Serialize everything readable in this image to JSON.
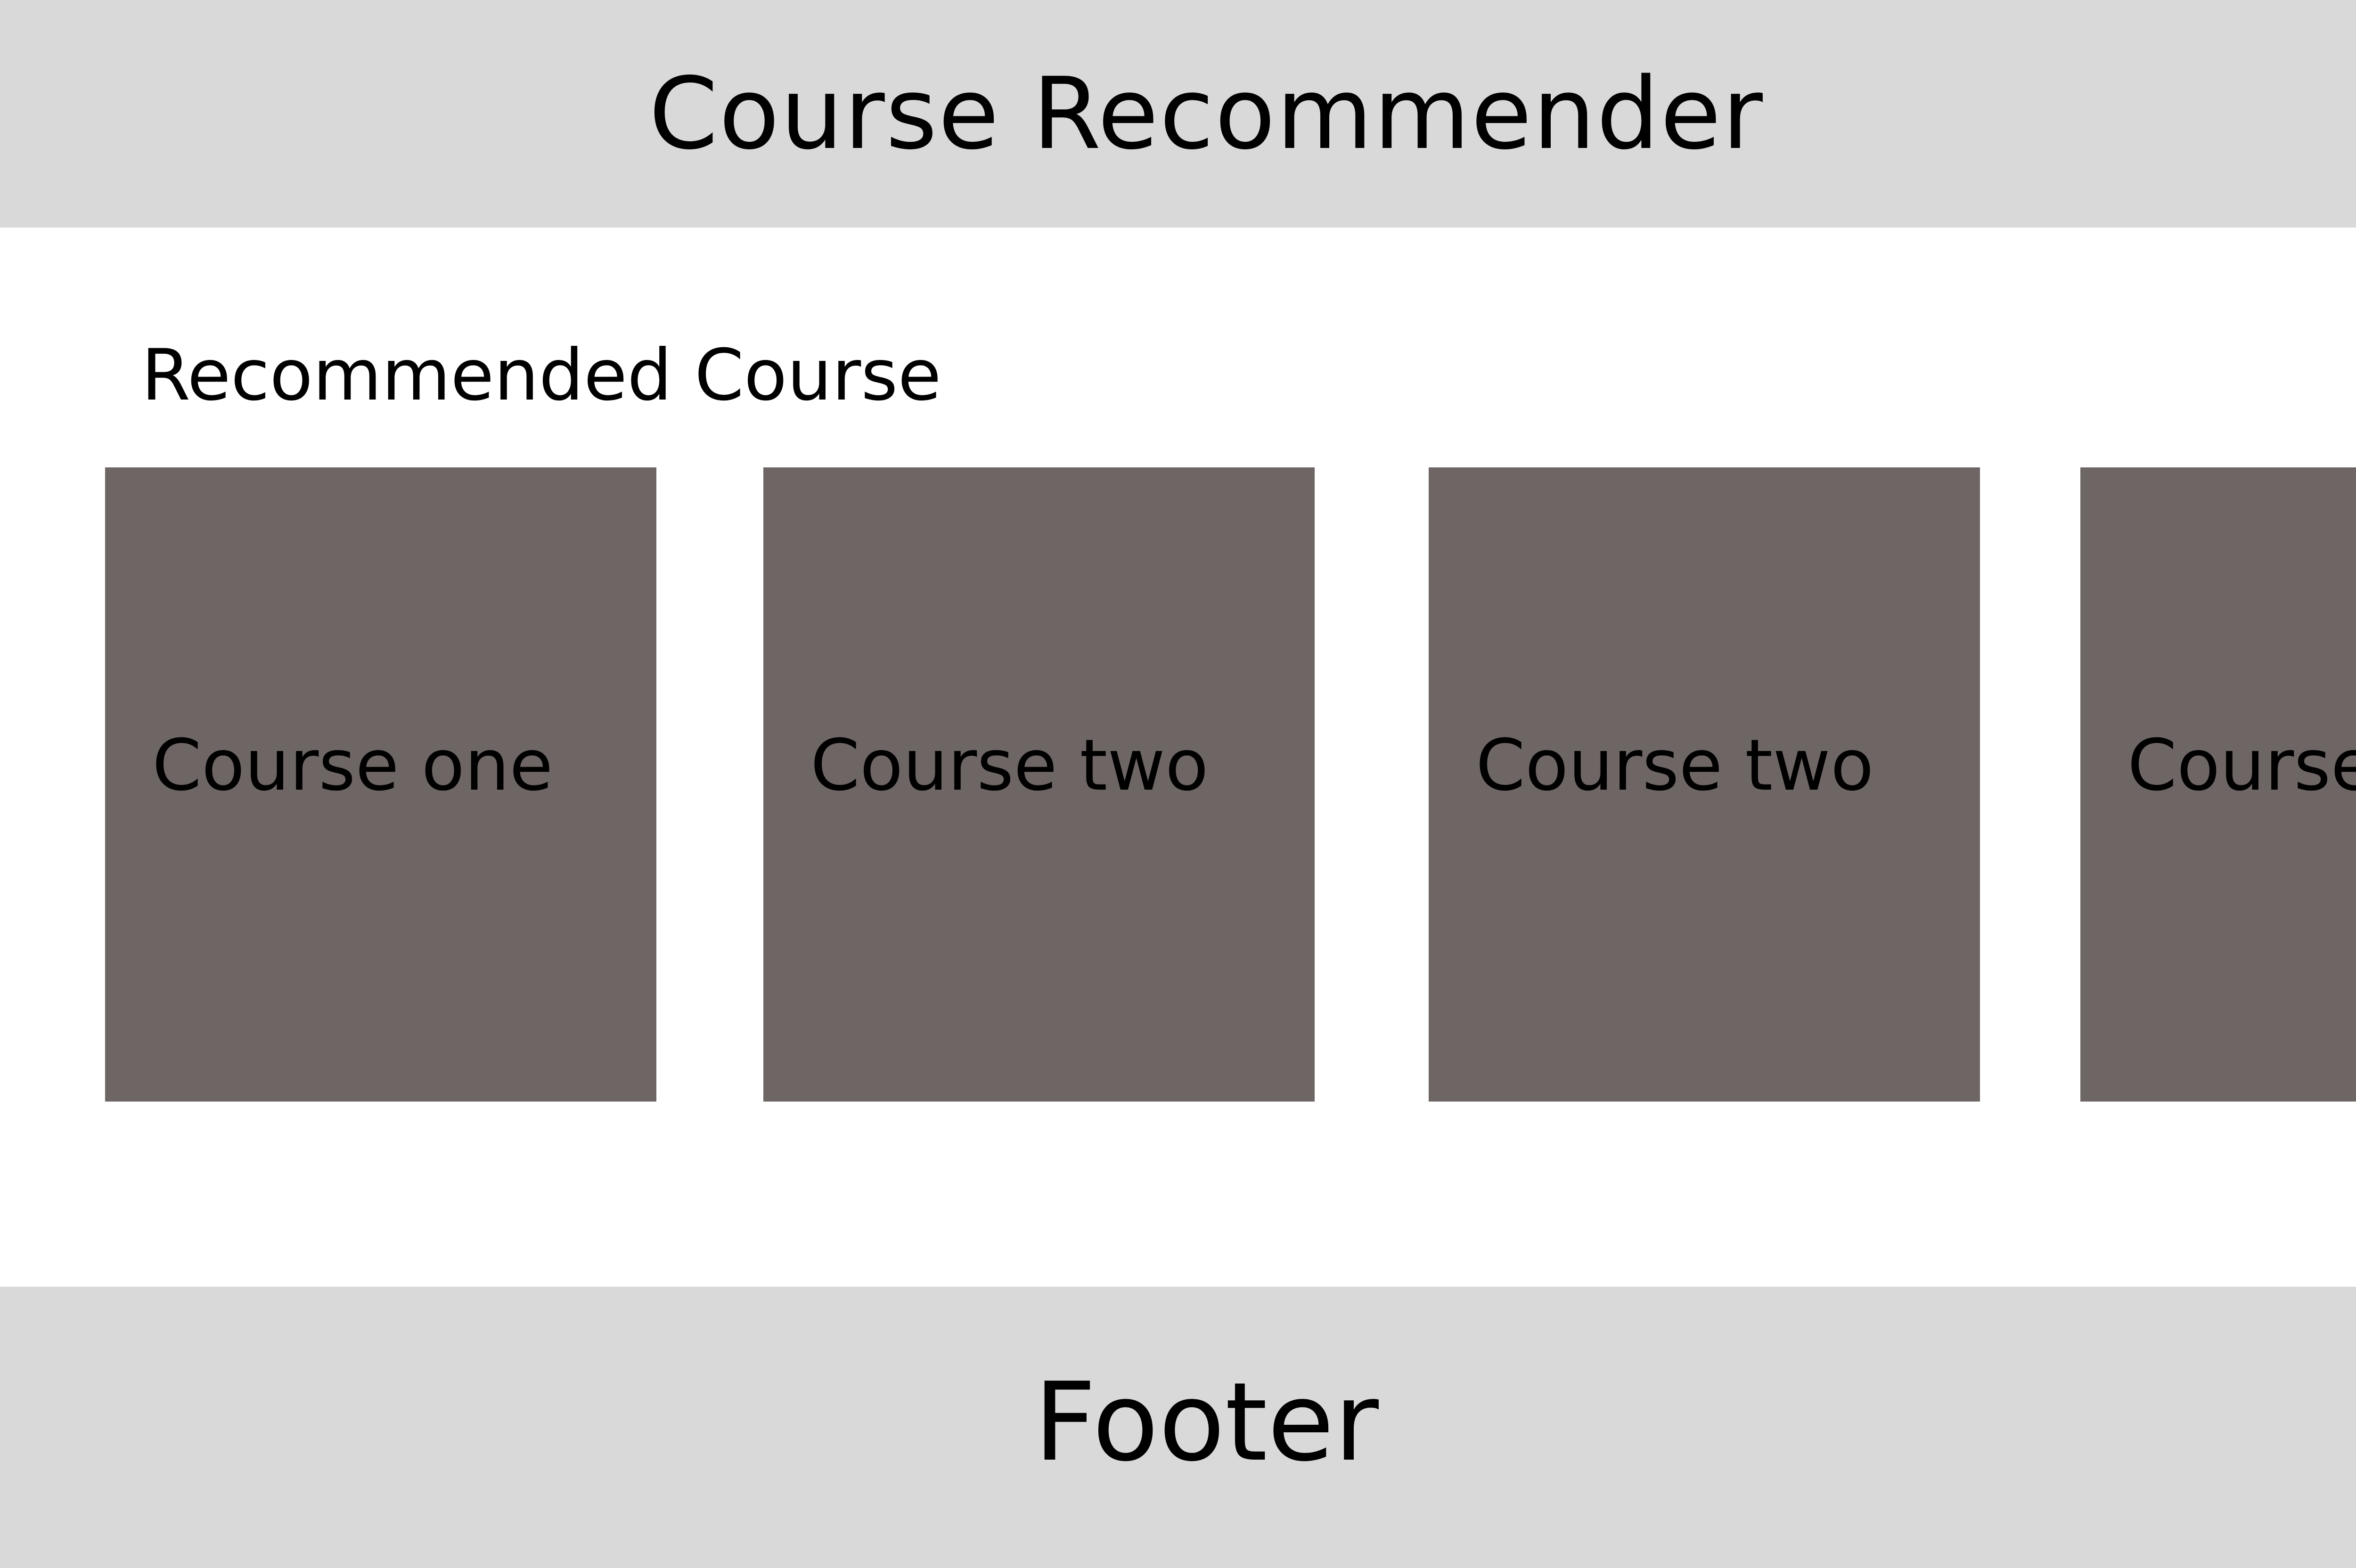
{
  "header": {
    "title": "Course Recommender"
  },
  "main": {
    "section_title": "Recommended Course",
    "courses": [
      {
        "label": "Course one"
      },
      {
        "label": "Course two"
      },
      {
        "label": "Course two"
      },
      {
        "label": "Course o"
      }
    ]
  },
  "footer": {
    "label": "Footer"
  },
  "colors": {
    "header_bg": "#d9d9d9",
    "card_bg": "#6e6665",
    "page_bg": "#ffffff",
    "text": "#000000"
  }
}
